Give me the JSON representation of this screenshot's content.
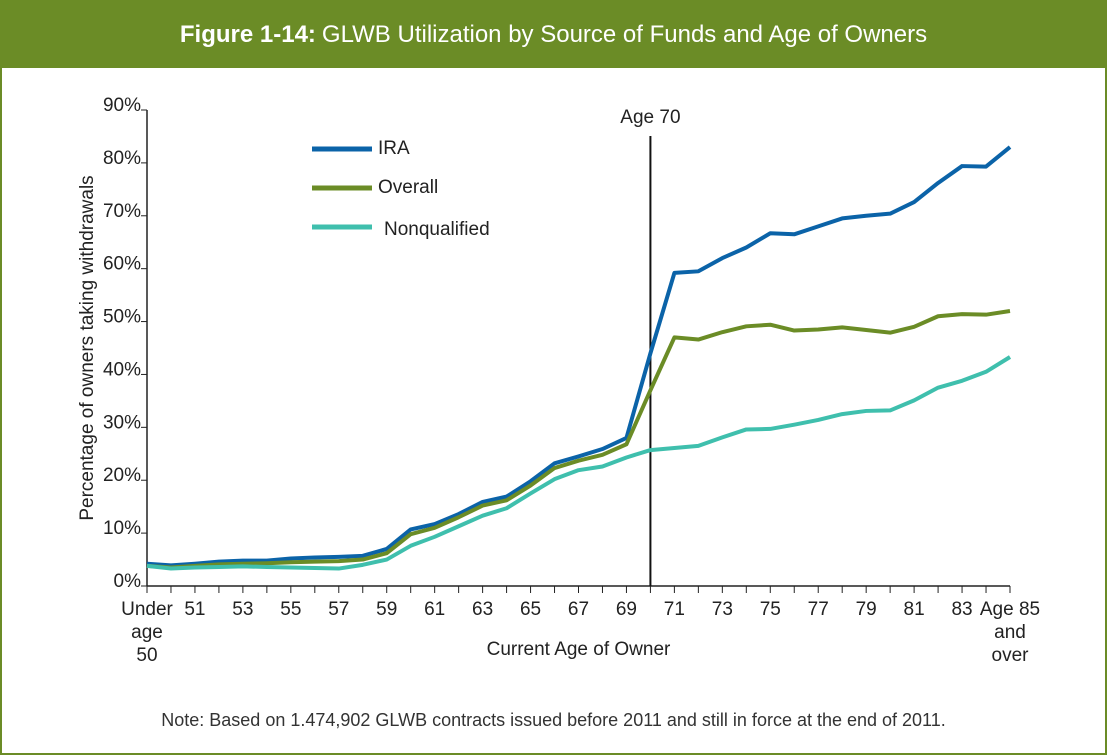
{
  "chart_data": {
    "type": "line",
    "title_label": "Figure 1-14:",
    "title": "GLWB Utilization by Source of Funds and Age of Owners",
    "x_label": "Current Age of Owner",
    "y_label": "Percentage of owners taking withdrawals",
    "note": "Note: Based on 1.474,902 GLWB contracts issued before 2011 and still in force at the end of 2011.",
    "categories": [
      "Under age 50",
      null,
      "51",
      null,
      "53",
      null,
      "55",
      null,
      "57",
      null,
      "59",
      null,
      "61",
      null,
      "63",
      null,
      "65",
      null,
      "67",
      null,
      "69",
      null,
      "71",
      null,
      "73",
      null,
      "75",
      null,
      "77",
      null,
      "79",
      null,
      "81",
      null,
      "83",
      null,
      "Age 85 and over"
    ],
    "series": [
      {
        "name": "IRA",
        "color": "#0b63a8",
        "values": [
          4.2,
          3.9,
          4.2,
          4.6,
          4.8,
          4.8,
          5.2,
          5.4,
          5.5,
          5.7,
          7,
          10.7,
          11.7,
          13.6,
          15.9,
          16.9,
          19.8,
          23.2,
          24.5,
          25.9,
          28,
          44,
          59.2,
          59.5,
          62,
          64,
          66.7,
          66.5,
          68,
          69.5,
          70,
          70.4,
          72.6,
          76.2,
          79.4,
          79.3,
          83
        ]
      },
      {
        "name": "Overall",
        "color": "#6b8c26",
        "values": [
          3.8,
          3.5,
          3.8,
          4.1,
          4.2,
          4.3,
          4.5,
          4.6,
          4.7,
          5,
          6.2,
          9.8,
          11,
          13,
          15.2,
          16.2,
          19,
          22.3,
          23.7,
          24.8,
          26.8,
          37,
          47,
          46.6,
          48,
          49.1,
          49.4,
          48.3,
          48.5,
          48.9,
          48.4,
          47.9,
          49,
          51,
          51.4,
          51.3,
          52
        ]
      },
      {
        "name": "Nonqualified",
        "color": "#3fbfad",
        "values": [
          3.8,
          3.3,
          3.5,
          3.6,
          3.7,
          3.6,
          3.5,
          3.4,
          3.3,
          4,
          5,
          7.6,
          9.3,
          11.3,
          13.3,
          14.7,
          17.5,
          20.2,
          21.9,
          22.6,
          24.3,
          25.7,
          26.1,
          26.5,
          28.1,
          29.6,
          29.7,
          30.5,
          31.4,
          32.5,
          33.1,
          33.2,
          35.1,
          37.5,
          38.8,
          40.5,
          43.3
        ]
      }
    ],
    "annotations": [
      {
        "text": "Age 70",
        "at": 21
      }
    ],
    "ylim": [
      0,
      90
    ],
    "yticks": [
      {
        "value": 0,
        "label": "0%"
      },
      {
        "value": 10,
        "label": "10%"
      },
      {
        "value": 20,
        "label": "20%"
      },
      {
        "value": 30,
        "label": "30%"
      },
      {
        "value": 40,
        "label": "40%"
      },
      {
        "value": 50,
        "label": "50%"
      },
      {
        "value": 60,
        "label": "60%"
      },
      {
        "value": 70,
        "label": "70%"
      },
      {
        "value": 80,
        "label": "80%"
      },
      {
        "value": 90,
        "label": "90%"
      }
    ],
    "grid": false,
    "legend": "top-left"
  }
}
